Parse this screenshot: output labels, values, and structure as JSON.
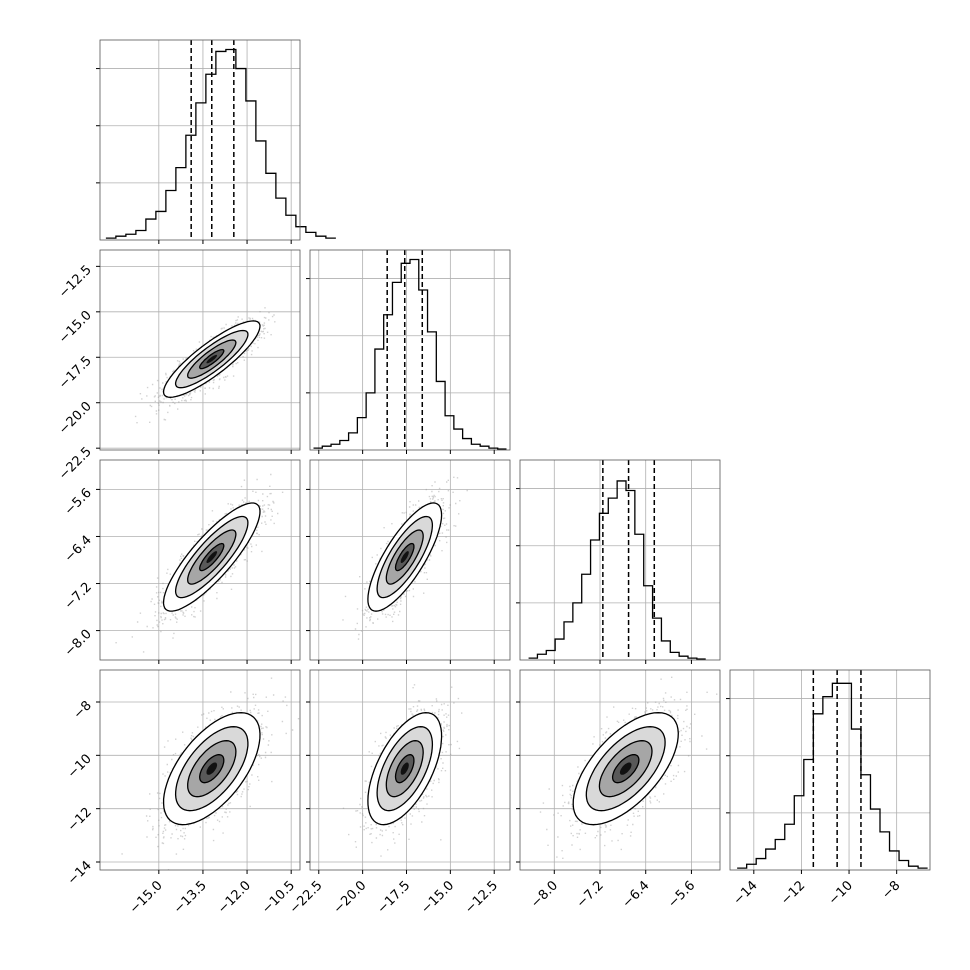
{
  "chart_data": {
    "type": "corner",
    "parameters": 4,
    "colors": {
      "line": "#000000",
      "grid": "#b0b0b0",
      "scatter": "#9a9a9a"
    },
    "grid": true,
    "xlim": [
      [
        -17.0,
        -10.2
      ],
      [
        -23.0,
        -11.6
      ],
      [
        -8.6,
        -5.1
      ],
      [
        -15.0,
        -6.6
      ]
    ],
    "ylim_2d": [
      null,
      [
        -22.6,
        -11.6
      ],
      [
        -8.5,
        -5.1
      ],
      [
        -14.3,
        -6.8
      ]
    ],
    "x_ticks": [
      {
        "values": [
          -15.0,
          -13.5,
          -12.0,
          -10.5
        ],
        "labels": [
          "−15.0",
          "−13.5",
          "−12.0",
          "−10.5"
        ]
      },
      {
        "values": [
          -22.5,
          -20.0,
          -17.5,
          -15.0,
          -12.5
        ],
        "labels": [
          "−22.5",
          "−20.0",
          "−17.5",
          "−15.0",
          "−12.5"
        ]
      },
      {
        "values": [
          -8.0,
          -7.2,
          -6.4,
          -5.6
        ],
        "labels": [
          "−8.0",
          "−7.2",
          "−6.4",
          "−5.6"
        ]
      },
      {
        "values": [
          -14,
          -12,
          -10,
          -8
        ],
        "labels": [
          "−14",
          "−12",
          "−10",
          "−8"
        ]
      }
    ],
    "y_ticks": [
      null,
      {
        "values": [
          -12.5,
          -15.0,
          -17.5,
          -20.0,
          -22.5
        ],
        "labels": [
          "−12.5",
          "−15.0",
          "−17.5",
          "−20.0",
          "−22.5"
        ]
      },
      {
        "values": [
          -5.6,
          -6.4,
          -7.2,
          -8.0
        ],
        "labels": [
          "−5.6",
          "−6.4",
          "−7.2",
          "−8.0"
        ]
      },
      {
        "values": [
          -8,
          -10,
          -12,
          -14
        ],
        "labels": [
          "−8",
          "−10",
          "−12",
          "−14"
        ]
      }
    ],
    "hist_ymax": [
      1.0,
      1.0,
      1.0,
      1.0
    ],
    "histograms": [
      {
        "param": 0,
        "bin_start": -16.8,
        "bin_width": 0.34,
        "counts": [
          0.01,
          0.02,
          0.03,
          0.05,
          0.11,
          0.15,
          0.26,
          0.38,
          0.55,
          0.72,
          0.87,
          0.99,
          1.0,
          0.9,
          0.73,
          0.52,
          0.35,
          0.22,
          0.13,
          0.07,
          0.04,
          0.02,
          0.01
        ],
        "quantiles": [
          -13.9,
          -13.2,
          -12.45
        ]
      },
      {
        "param": 1,
        "bin_start": -22.8,
        "bin_width": 0.5,
        "counts": [
          0.01,
          0.02,
          0.03,
          0.05,
          0.09,
          0.17,
          0.3,
          0.53,
          0.71,
          0.88,
          0.98,
          1.0,
          0.84,
          0.62,
          0.36,
          0.18,
          0.11,
          0.06,
          0.03,
          0.02,
          0.01,
          0.005
        ],
        "quantiles": [
          -18.6,
          -17.6,
          -16.6
        ]
      },
      {
        "param": 2,
        "bin_start": -8.45,
        "bin_width": 0.155,
        "counts": [
          0.01,
          0.03,
          0.05,
          0.11,
          0.2,
          0.3,
          0.45,
          0.63,
          0.77,
          0.85,
          0.94,
          0.89,
          0.66,
          0.39,
          0.22,
          0.1,
          0.04,
          0.02,
          0.01,
          0.005
        ],
        "quantiles": [
          -7.15,
          -6.7,
          -6.25
        ]
      },
      {
        "param": 3,
        "bin_start": -14.7,
        "bin_width": 0.4,
        "counts": [
          0.01,
          0.03,
          0.06,
          0.11,
          0.16,
          0.24,
          0.39,
          0.58,
          0.82,
          0.91,
          0.98,
          0.98,
          0.74,
          0.5,
          0.32,
          0.2,
          0.1,
          0.05,
          0.02,
          0.01
        ],
        "quantiles": [
          -11.5,
          -10.5,
          -9.5
        ]
      }
    ],
    "pairs": [
      {
        "x_param": 0,
        "y_param": 1,
        "mean": [
          -13.2,
          -17.6
        ],
        "sd": [
          0.82,
          1.05
        ],
        "rho": 0.86
      },
      {
        "x_param": 0,
        "y_param": 2,
        "mean": [
          -13.2,
          -6.75
        ],
        "sd": [
          0.82,
          0.46
        ],
        "rho": 0.84
      },
      {
        "x_param": 1,
        "y_param": 2,
        "mean": [
          -17.6,
          -6.75
        ],
        "sd": [
          1.05,
          0.46
        ],
        "rho": 0.78
      },
      {
        "x_param": 0,
        "y_param": 3,
        "mean": [
          -13.2,
          -10.5
        ],
        "sd": [
          0.82,
          1.05
        ],
        "rho": 0.6
      },
      {
        "x_param": 1,
        "y_param": 3,
        "mean": [
          -17.6,
          -10.5
        ],
        "sd": [
          1.05,
          1.05
        ],
        "rho": 0.58
      },
      {
        "x_param": 2,
        "y_param": 3,
        "mean": [
          -6.75,
          -10.5
        ],
        "sd": [
          0.46,
          1.05
        ],
        "rho": 0.62
      }
    ],
    "contour_levels_sigma": [
      0.5,
      1.0,
      1.5,
      2.0
    ]
  }
}
